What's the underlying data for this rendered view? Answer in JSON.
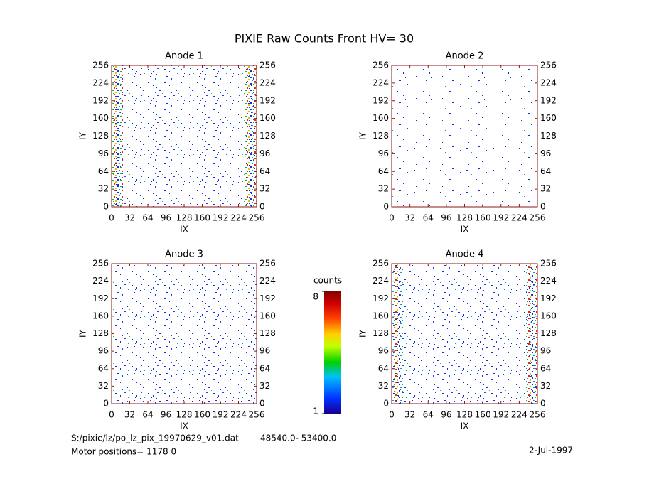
{
  "title": "PIXIE Raw Counts Front HV= 30",
  "chart_data": [
    {
      "type": "heatmap",
      "title": "Anode 1",
      "xlabel": "IX",
      "ylabel": "IY",
      "xlim": [
        0,
        256
      ],
      "ylim": [
        0,
        256
      ],
      "xticks": [
        0,
        32,
        64,
        96,
        128,
        160,
        192,
        224,
        256
      ],
      "yticks": [
        0,
        32,
        64,
        96,
        128,
        160,
        192,
        224,
        256
      ]
    },
    {
      "type": "heatmap",
      "title": "Anode 2",
      "xlabel": "IX",
      "ylabel": "IY",
      "xlim": [
        0,
        256
      ],
      "ylim": [
        0,
        256
      ],
      "xticks": [
        0,
        32,
        64,
        96,
        128,
        160,
        192,
        224,
        256
      ],
      "yticks": [
        0,
        32,
        64,
        96,
        128,
        160,
        192,
        224,
        256
      ]
    },
    {
      "type": "heatmap",
      "title": "Anode 3",
      "xlabel": "IX",
      "ylabel": "IY",
      "xlim": [
        0,
        256
      ],
      "ylim": [
        0,
        256
      ],
      "xticks": [
        0,
        32,
        64,
        96,
        128,
        160,
        192,
        224,
        256
      ],
      "yticks": [
        0,
        32,
        64,
        96,
        128,
        160,
        192,
        224,
        256
      ]
    },
    {
      "type": "heatmap",
      "title": "Anode 4",
      "xlabel": "IX",
      "ylabel": "IY",
      "xlim": [
        0,
        256
      ],
      "ylim": [
        0,
        256
      ],
      "xticks": [
        0,
        32,
        64,
        96,
        128,
        160,
        192,
        224,
        256
      ],
      "yticks": [
        0,
        32,
        64,
        96,
        128,
        160,
        192,
        224,
        256
      ]
    }
  ],
  "colorbar": {
    "label": "counts",
    "lim": [
      1,
      8
    ],
    "ticks": [
      1,
      8
    ]
  },
  "footer": {
    "file": "S:/pixie/lz/po_lz_pix_19970629_v01.dat",
    "range": "48540.0- 53400.0",
    "motor": "Motor positions= 1178 0",
    "date": "2-Jul-1997"
  }
}
